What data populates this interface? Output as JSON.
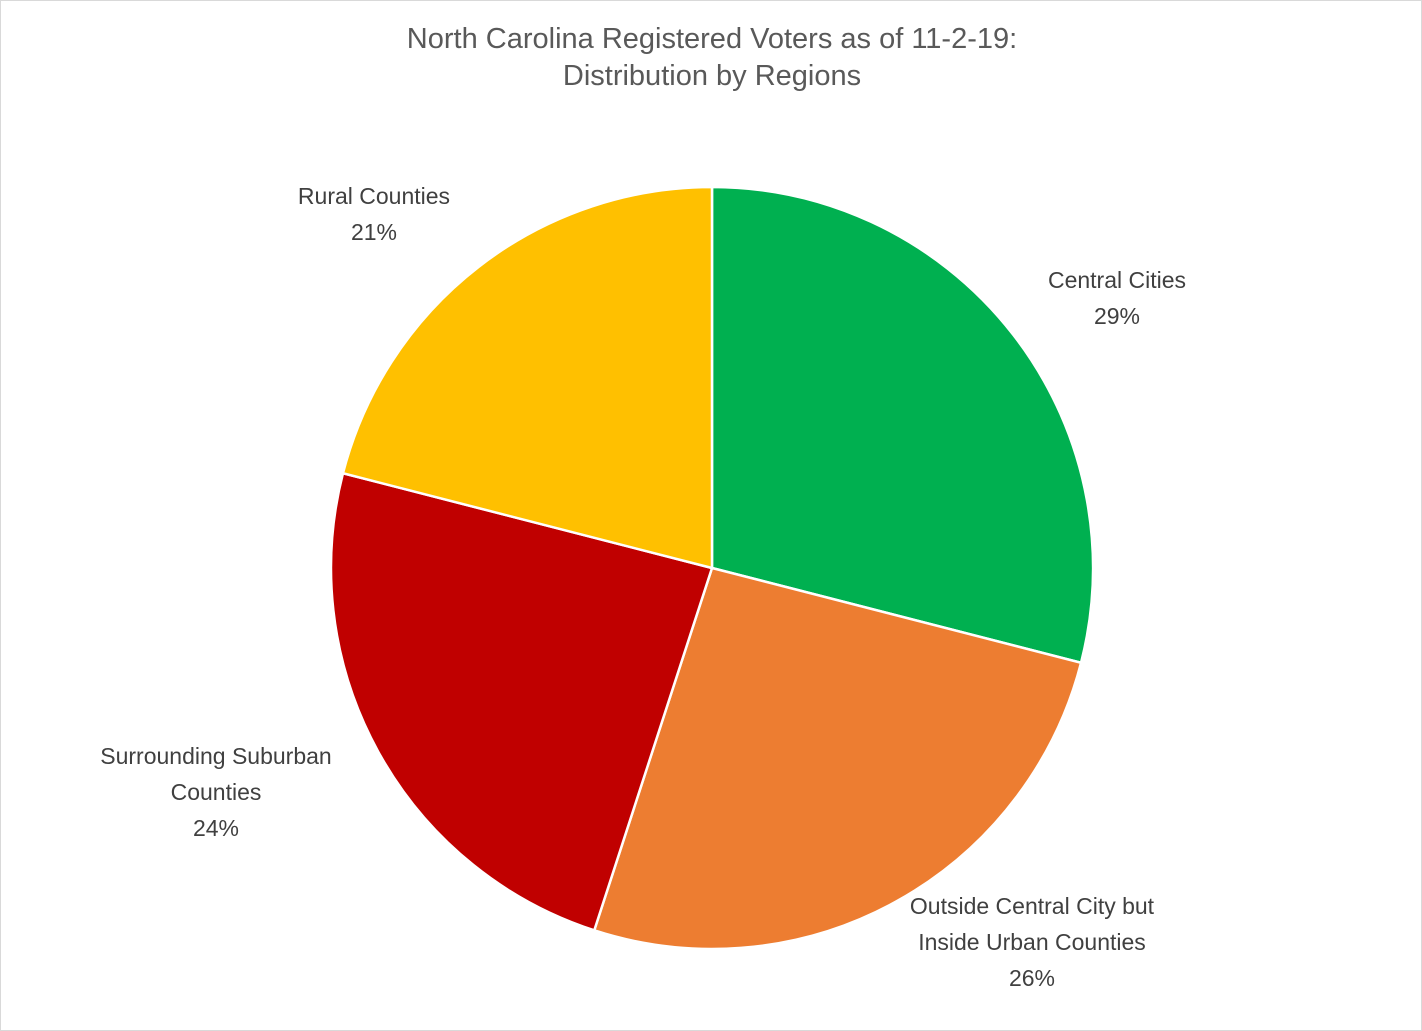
{
  "chart_data": {
    "type": "pie",
    "title": "North Carolina Registered Voters as of 11-2-19: Distribution by Regions",
    "categories": [
      "Central Cities",
      "Outside Central City but Inside Urban Counties",
      "Surrounding Suburban Counties",
      "Rural Counties"
    ],
    "values": [
      29,
      26,
      24,
      21
    ],
    "value_labels": [
      "29%",
      "26%",
      "24%",
      "21%"
    ],
    "colors": [
      "#00b050",
      "#ed7d31",
      "#c00000",
      "#ffc000"
    ]
  }
}
